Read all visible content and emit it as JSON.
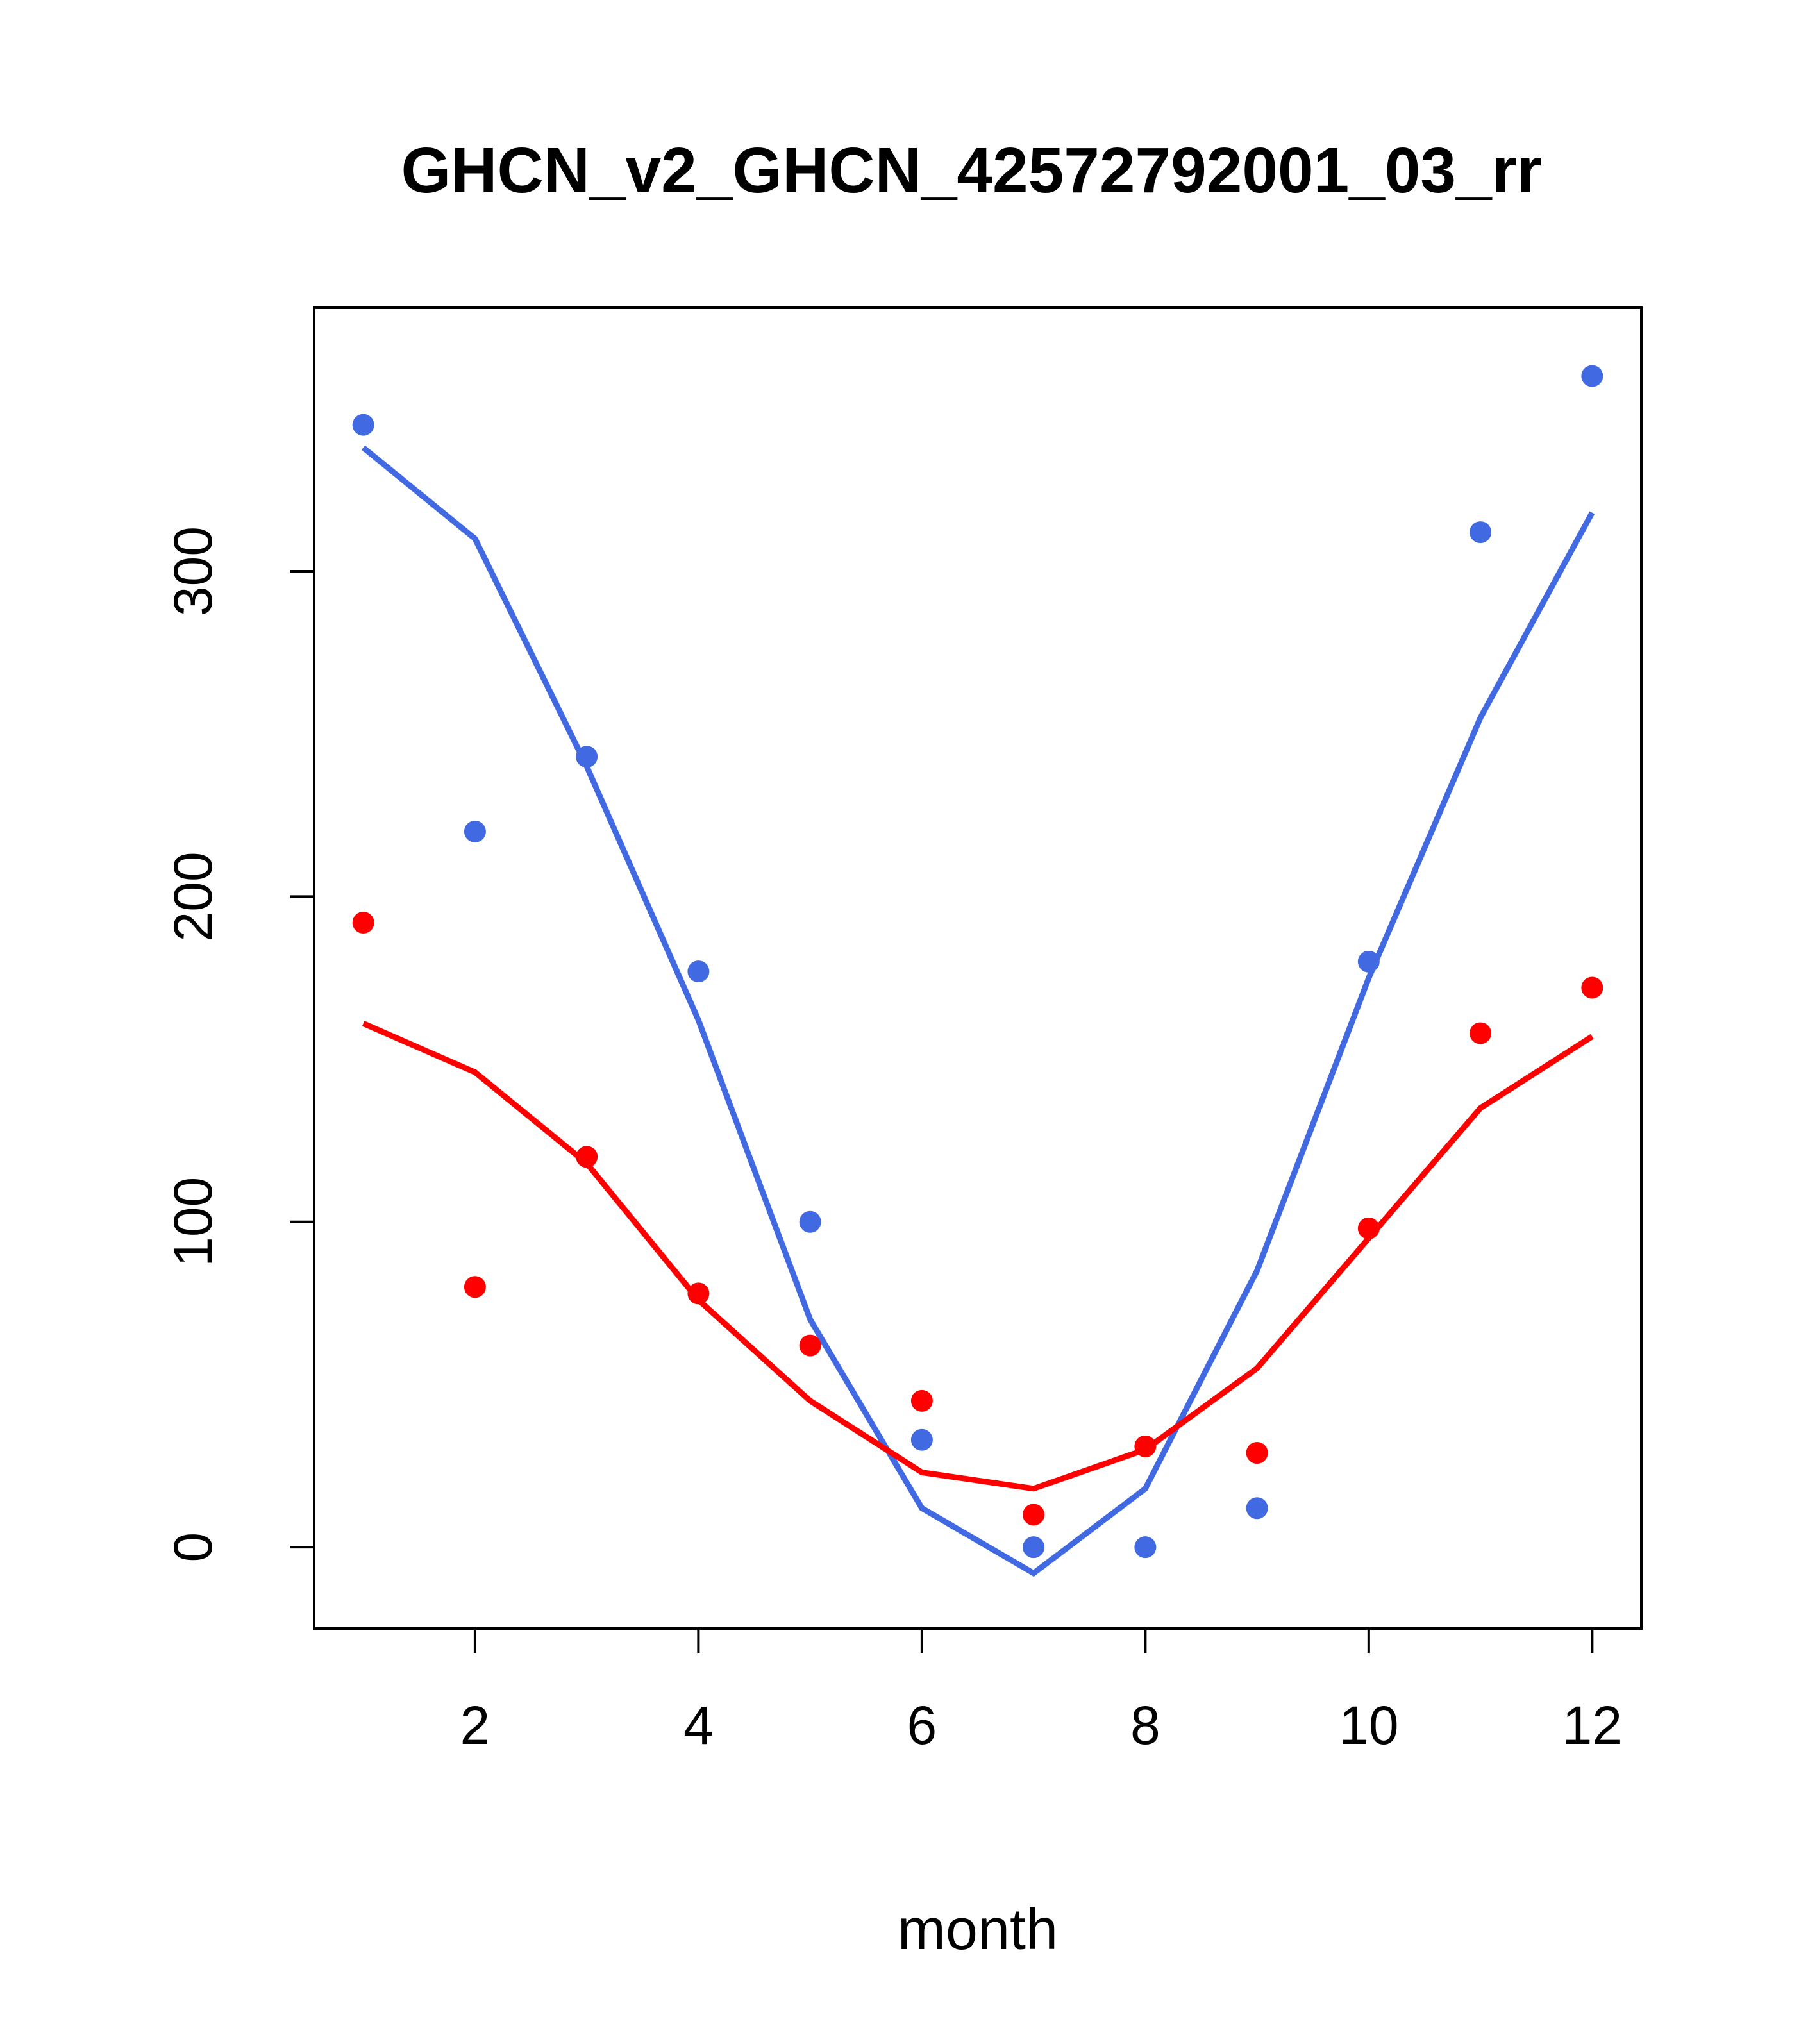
{
  "chart_data": {
    "type": "line",
    "title": "GHCN_v2_GHCN_42572792001_03_rr",
    "xlabel": "month",
    "ylabel": "",
    "x": [
      1,
      2,
      3,
      4,
      5,
      6,
      7,
      8,
      9,
      10,
      11,
      12
    ],
    "x_ticks": [
      2,
      4,
      6,
      8,
      10,
      12
    ],
    "y_ticks": [
      0,
      100,
      200,
      300
    ],
    "xlim": [
      0.56,
      12.44
    ],
    "ylim": [
      -25,
      381
    ],
    "grid": false,
    "colors": {
      "blue_series": "#4169E1",
      "red_series": "#FF0000",
      "axis": "#000000",
      "background": "#FFFFFF"
    },
    "series": [
      {
        "name": "blue-line-fit",
        "style": "line",
        "color": "#4169E1",
        "values": [
          338,
          310,
          240,
          162,
          70,
          12,
          -8,
          18,
          85,
          175,
          255,
          318
        ]
      },
      {
        "name": "red-line-fit",
        "style": "line",
        "color": "#FF0000",
        "values": [
          161,
          146,
          118,
          76,
          45,
          23,
          18,
          30,
          55,
          95,
          135,
          157
        ]
      },
      {
        "name": "blue-points",
        "style": "points",
        "color": "#4169E1",
        "values": [
          345,
          220,
          243,
          177,
          100,
          33,
          0,
          0,
          12,
          180,
          312,
          360
        ]
      },
      {
        "name": "red-points",
        "style": "points",
        "color": "#FF0000",
        "values": [
          192,
          80,
          120,
          78,
          62,
          45,
          10,
          31,
          29,
          98,
          158,
          172
        ]
      }
    ]
  }
}
